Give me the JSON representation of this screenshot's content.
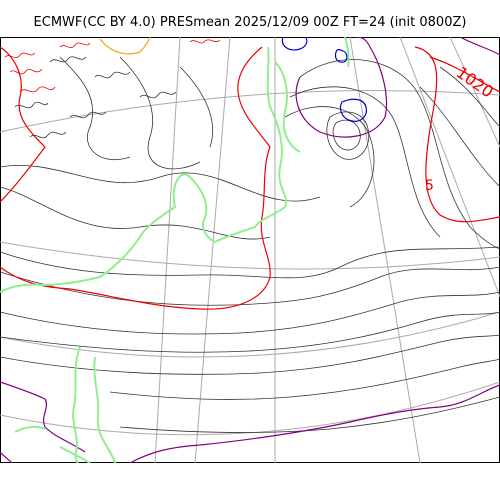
{
  "title": "ECMWF(CC BY 4.0) PRESmean 2025/12/09 00Z FT=24 (init 0800Z)",
  "contour_labels": [
    "1020",
    "5"
  ],
  "colors": {
    "background": "#ffffff",
    "isobar": "#333333",
    "isobar_1020": "#ee0000",
    "isobar_low": "#0000cc",
    "isobar_high": "#800080",
    "coastline": "#90ee90",
    "orange_line": "#f5a623",
    "graticule": "#aaaaaa"
  }
}
